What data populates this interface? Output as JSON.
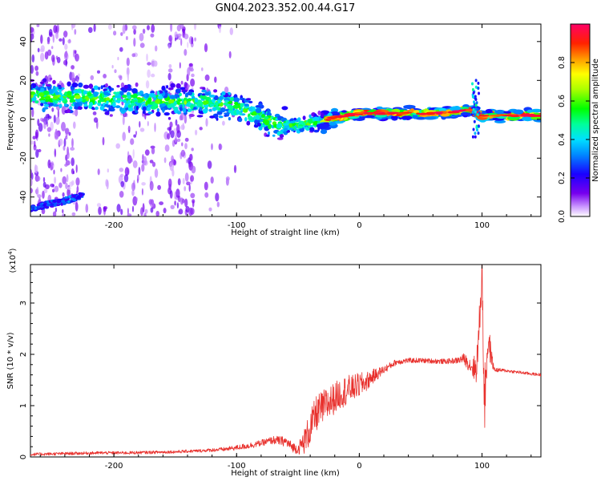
{
  "title": "GN04.2023.352.00.44.G17",
  "chart_data": [
    {
      "type": "heatmap",
      "xlabel": "Height of straight line (km)",
      "ylabel": "Frequency (Hz)",
      "xlim": [
        -268,
        148
      ],
      "ylim": [
        -50,
        49
      ],
      "xticks": [
        -200,
        -100,
        0,
        100
      ],
      "yticks": [
        -40,
        -20,
        0,
        20,
        40
      ],
      "colorbar": {
        "label": "Normalized spectral amplitude",
        "range": [
          0,
          1
        ],
        "ticks": [
          0.0,
          0.2,
          0.4,
          0.6,
          0.8
        ]
      },
      "ridge": {
        "x": [
          -268,
          -240,
          -220,
          -200,
          -180,
          -160,
          -140,
          -120,
          -100,
          -90,
          -80,
          -70,
          -60,
          -50,
          -40,
          -30,
          -20,
          -10,
          0,
          20,
          40,
          60,
          80,
          90,
          100,
          110,
          120,
          130,
          148
        ],
        "freq": [
          12,
          11,
          11,
          10,
          10,
          9,
          9,
          8,
          7,
          4,
          1,
          -2,
          -3,
          -3,
          -2,
          -1,
          1,
          2,
          3,
          3,
          3,
          3,
          4,
          5,
          2,
          2,
          2,
          2,
          2
        ]
      },
      "low_branch": {
        "x": [
          -268,
          -255,
          -240,
          -225
        ],
        "freq": [
          -46,
          -44,
          -42,
          -39
        ]
      }
    },
    {
      "type": "line",
      "xlabel": "Height of straight line (km)",
      "ylabel": "SNR (10 * v/v)",
      "yscale_label": "(x10",
      "yscale_exp": "4",
      "xlim": [
        -268,
        148
      ],
      "ylim": [
        0,
        3.75
      ],
      "xticks": [
        -200,
        -100,
        0,
        100
      ],
      "yticks": [
        0,
        1,
        2,
        3
      ],
      "color": "#e8302c",
      "series": [
        {
          "x": [
            -268,
            -250,
            -230,
            -210,
            -190,
            -170,
            -150,
            -130,
            -110,
            -100,
            -90,
            -80,
            -70,
            -60,
            -55,
            -50,
            -45,
            -40,
            -35,
            -30,
            -25,
            -20,
            -15,
            -10,
            -5,
            0,
            5,
            10,
            20,
            30,
            40,
            50,
            60,
            70,
            80,
            85,
            90,
            95,
            97,
            99,
            100,
            101,
            102,
            103,
            105,
            108,
            110,
            120,
            130,
            140,
            148
          ],
          "y": [
            0.05,
            0.06,
            0.07,
            0.08,
            0.08,
            0.09,
            0.1,
            0.12,
            0.15,
            0.18,
            0.22,
            0.27,
            0.33,
            0.3,
            0.2,
            0.15,
            0.3,
            0.55,
            0.85,
            0.95,
            1.05,
            1.15,
            1.25,
            1.3,
            1.35,
            1.4,
            1.45,
            1.55,
            1.7,
            1.85,
            1.88,
            1.88,
            1.87,
            1.86,
            1.88,
            1.92,
            1.8,
            1.7,
            2.2,
            3.1,
            3.7,
            2.4,
            0.9,
            1.6,
            2.3,
            1.9,
            1.7,
            1.68,
            1.65,
            1.62,
            1.6
          ],
          "noise": [
            0.03,
            0.03,
            0.03,
            0.03,
            0.03,
            0.03,
            0.03,
            0.03,
            0.04,
            0.05,
            0.06,
            0.06,
            0.08,
            0.1,
            0.1,
            0.1,
            0.25,
            0.35,
            0.35,
            0.35,
            0.35,
            0.3,
            0.3,
            0.3,
            0.25,
            0.25,
            0.2,
            0.15,
            0.08,
            0.06,
            0.05,
            0.05,
            0.05,
            0.05,
            0.06,
            0.1,
            0.15,
            0.3,
            0.4,
            0.4,
            0.3,
            0.6,
            0.6,
            0.6,
            0.4,
            0.15,
            0.05,
            0.03,
            0.03,
            0.03,
            0.03
          ]
        }
      ]
    }
  ]
}
